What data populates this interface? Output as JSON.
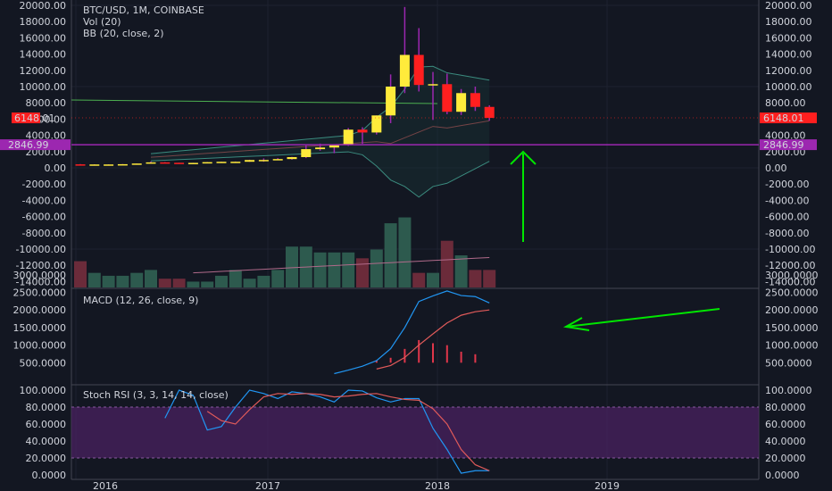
{
  "legend": {
    "title": "BTC/USD, 1M, COINBASE",
    "vol": "Vol (20)",
    "bb": "BB (20, close, 2)",
    "macd": "MACD (12, 26, close, 9)",
    "stoch": "Stoch RSI (3, 3, 14, 14, close)"
  },
  "price_tags": {
    "last": "6148.01",
    "hline": "2846.99"
  },
  "colors": {
    "up": "#ffeb3b",
    "down": "#ff1f1f",
    "wick": "#9c27b0",
    "hline": "#9c27b0",
    "arrow": "#00e600",
    "bb_basis": "#4caf50",
    "vol_up": "#2d5a4e",
    "vol_down": "#6b2b3a",
    "rsi_band": "#4a2160"
  },
  "main_axis": {
    "left": [
      "20000.00",
      "18000.00",
      "16000.00",
      "14000.00",
      "12000.00",
      "10000.00",
      "8000.00",
      "6000.00",
      "4000.00",
      "2000.00",
      "0.00",
      "-2000.00",
      "-4000.00",
      "-6000.00",
      "-8000.00",
      "-10000.00",
      "-12000.00",
      "-14000.00"
    ],
    "right": [
      "20000.00",
      "18000.00",
      "16000.00",
      "14000.00",
      "12000.00",
      "10000.00",
      "8000.00",
      "6000.00",
      "4000.00",
      "2000.00",
      "0.00",
      "-2000.00",
      "-4000.00",
      "-6000.00",
      "-8000.00",
      "-10000.00",
      "-12000.00",
      "-14000.00"
    ]
  },
  "macd_axis": {
    "left": [
      "3000.0000",
      "2500.0000",
      "2000.0000",
      "1500.0000",
      "1000.0000",
      "500.0000"
    ],
    "right": [
      "3000.0000",
      "2500.0000",
      "2000.0000",
      "1500.0000",
      "1000.0000",
      "500.0000"
    ]
  },
  "rsi_axis": {
    "left": [
      "100.0000",
      "80.0000",
      "60.0000",
      "40.0000",
      "20.0000",
      "0.0000"
    ],
    "right": [
      "100.0000",
      "80.0000",
      "60.0000",
      "40.0000",
      "20.0000",
      "0.0000"
    ]
  },
  "time_axis": [
    "2016",
    "2017",
    "2018",
    "2019"
  ],
  "chart_data": {
    "type": "candlestick",
    "candles": [
      {
        "o": 430,
        "h": 460,
        "l": 360,
        "c": 370
      },
      {
        "o": 370,
        "h": 440,
        "l": 350,
        "c": 415
      },
      {
        "o": 415,
        "h": 430,
        "l": 390,
        "c": 416
      },
      {
        "o": 416,
        "h": 470,
        "l": 410,
        "c": 448
      },
      {
        "o": 448,
        "h": 530,
        "l": 440,
        "c": 531
      },
      {
        "o": 531,
        "h": 780,
        "l": 520,
        "c": 672
      },
      {
        "o": 672,
        "h": 700,
        "l": 570,
        "c": 624
      },
      {
        "o": 624,
        "h": 625,
        "l": 530,
        "c": 575
      },
      {
        "o": 575,
        "h": 620,
        "l": 570,
        "c": 610
      },
      {
        "o": 610,
        "h": 720,
        "l": 600,
        "c": 700
      },
      {
        "o": 700,
        "h": 760,
        "l": 690,
        "c": 745
      },
      {
        "o": 745,
        "h": 780,
        "l": 730,
        "c": 750
      },
      {
        "o": 750,
        "h": 1000,
        "l": 740,
        "c": 960
      },
      {
        "o": 960,
        "h": 1160,
        "l": 750,
        "c": 970
      },
      {
        "o": 970,
        "h": 1200,
        "l": 940,
        "c": 1080
      },
      {
        "o": 1080,
        "h": 1350,
        "l": 1000,
        "c": 1320
      },
      {
        "o": 1320,
        "h": 2760,
        "l": 1200,
        "c": 2300
      },
      {
        "o": 2300,
        "h": 2980,
        "l": 2100,
        "c": 2500
      },
      {
        "o": 2500,
        "h": 2900,
        "l": 1800,
        "c": 2870
      },
      {
        "o": 2870,
        "h": 4900,
        "l": 2700,
        "c": 4700
      },
      {
        "o": 4700,
        "h": 5000,
        "l": 2950,
        "c": 4350
      },
      {
        "o": 4350,
        "h": 6450,
        "l": 4100,
        "c": 6450
      },
      {
        "o": 6450,
        "h": 11500,
        "l": 5500,
        "c": 10000
      },
      {
        "o": 10000,
        "h": 19800,
        "l": 9200,
        "c": 13900
      },
      {
        "o": 13900,
        "h": 17200,
        "l": 9400,
        "c": 10200
      },
      {
        "o": 10200,
        "h": 11800,
        "l": 5900,
        "c": 10300
      },
      {
        "o": 10300,
        "h": 11600,
        "l": 6600,
        "c": 6900
      },
      {
        "o": 6900,
        "h": 9700,
        "l": 6500,
        "c": 9200
      },
      {
        "o": 9200,
        "h": 10000,
        "l": 7000,
        "c": 7500
      },
      {
        "o": 7500,
        "h": 7700,
        "l": 5800,
        "c": 6148
      }
    ],
    "volume": [
      9,
      5,
      4,
      4,
      5,
      6,
      3,
      3,
      2,
      2,
      4,
      6,
      3,
      4,
      6,
      14,
      14,
      12,
      12,
      12,
      10,
      13,
      22,
      24,
      5,
      5,
      16,
      11,
      6,
      6
    ],
    "volume_ma_note": "",
    "macd_line": [
      null,
      null,
      null,
      null,
      null,
      null,
      null,
      null,
      null,
      null,
      null,
      null,
      null,
      null,
      null,
      null,
      null,
      null,
      190,
      290,
      400,
      560,
      900,
      1500,
      2240,
      2400,
      2540,
      2410,
      2380,
      2200
    ],
    "signal_line": [
      null,
      null,
      null,
      null,
      null,
      null,
      null,
      null,
      null,
      null,
      null,
      null,
      null,
      null,
      null,
      null,
      null,
      null,
      null,
      null,
      null,
      320,
      420,
      650,
      1000,
      1320,
      1630,
      1850,
      1950,
      2000
    ],
    "histogram": [
      0,
      0,
      0,
      0,
      0,
      0,
      0,
      0,
      0,
      0,
      0,
      0,
      0,
      0,
      0,
      0,
      0,
      0,
      0,
      0,
      0,
      130,
      250,
      700,
      1150,
      990,
      890,
      560,
      430,
      0
    ],
    "stoch_k": [
      null,
      null,
      null,
      null,
      null,
      null,
      67,
      100,
      94,
      53,
      57,
      80,
      100,
      96,
      90,
      98,
      96,
      92,
      86,
      100,
      99,
      91,
      86,
      90,
      90,
      55,
      30,
      2,
      5,
      5
    ],
    "stoch_d": [
      null,
      null,
      null,
      null,
      null,
      null,
      null,
      null,
      null,
      75,
      64,
      60,
      77,
      92,
      96,
      95,
      96,
      95,
      92,
      93,
      95,
      96,
      92,
      89,
      88,
      78,
      60,
      30,
      12,
      5
    ],
    "x_start": "2015-12",
    "interval": "1M"
  }
}
